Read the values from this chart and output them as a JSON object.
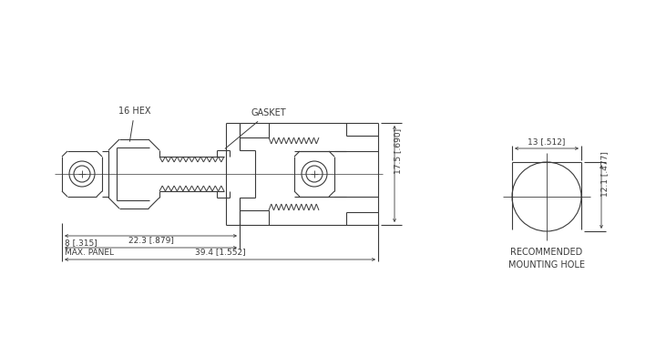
{
  "bg_color": "#ffffff",
  "line_color": "#3a3a3a",
  "labels": {
    "hex": "16 HEX",
    "gasket": "GASKET",
    "panel": "8 [.315]\nMAX. PANEL",
    "dim1": "22.3 [.879]",
    "dim2": "39.4 [1.552]",
    "dim3": "17.5 [.690]",
    "rec_title": "RECOMMENDED\nMOUNTING HOLE",
    "dim4": "13 [.512]",
    "dim5": "12.1 [.477]"
  }
}
